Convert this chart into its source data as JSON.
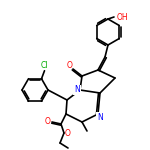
{
  "bg_color": "#ffffff",
  "bond_color": "#000000",
  "atom_colors": {
    "O": "#ff0000",
    "N": "#0000ff",
    "S": "#ccaa00",
    "Cl": "#00aa00",
    "C": "#000000"
  },
  "line_width": 1.2,
  "figsize": [
    1.5,
    1.5
  ],
  "dpi": 100
}
